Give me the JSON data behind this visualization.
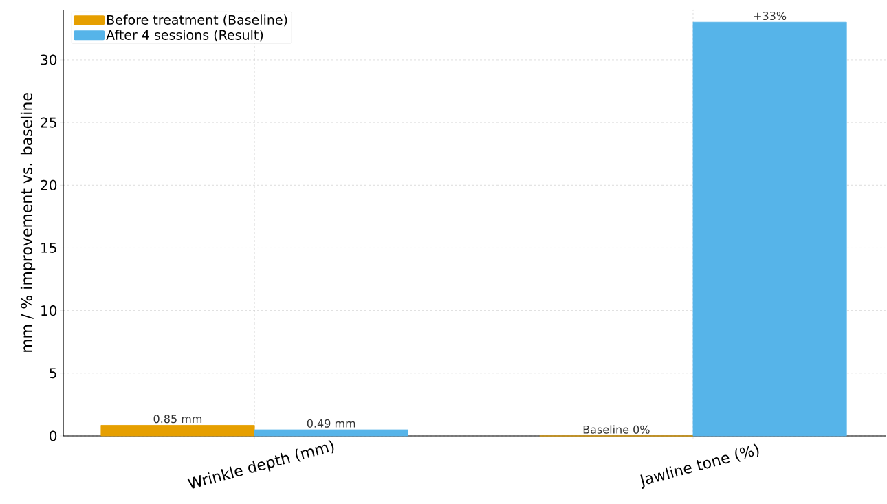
{
  "chart_data": {
    "type": "bar",
    "ylabel": "mm / % improvement vs. baseline",
    "categories": [
      "Wrinkle depth (mm)",
      "Jawline tone (%)"
    ],
    "series": [
      {
        "name": "Before treatment (Baseline)",
        "color": "#e69f00",
        "values": [
          0.85,
          0
        ],
        "value_labels": [
          "0.85 mm",
          "Baseline 0%"
        ]
      },
      {
        "name": "After 4 sessions (Result)",
        "color": "#56b4e9",
        "values": [
          0.49,
          33
        ],
        "value_labels": [
          "0.49 mm",
          "+33%"
        ]
      }
    ],
    "ylim": [
      0,
      34
    ],
    "yticks": [
      0,
      5,
      10,
      15,
      20,
      25,
      30
    ],
    "grid": true,
    "legend": "top left"
  }
}
